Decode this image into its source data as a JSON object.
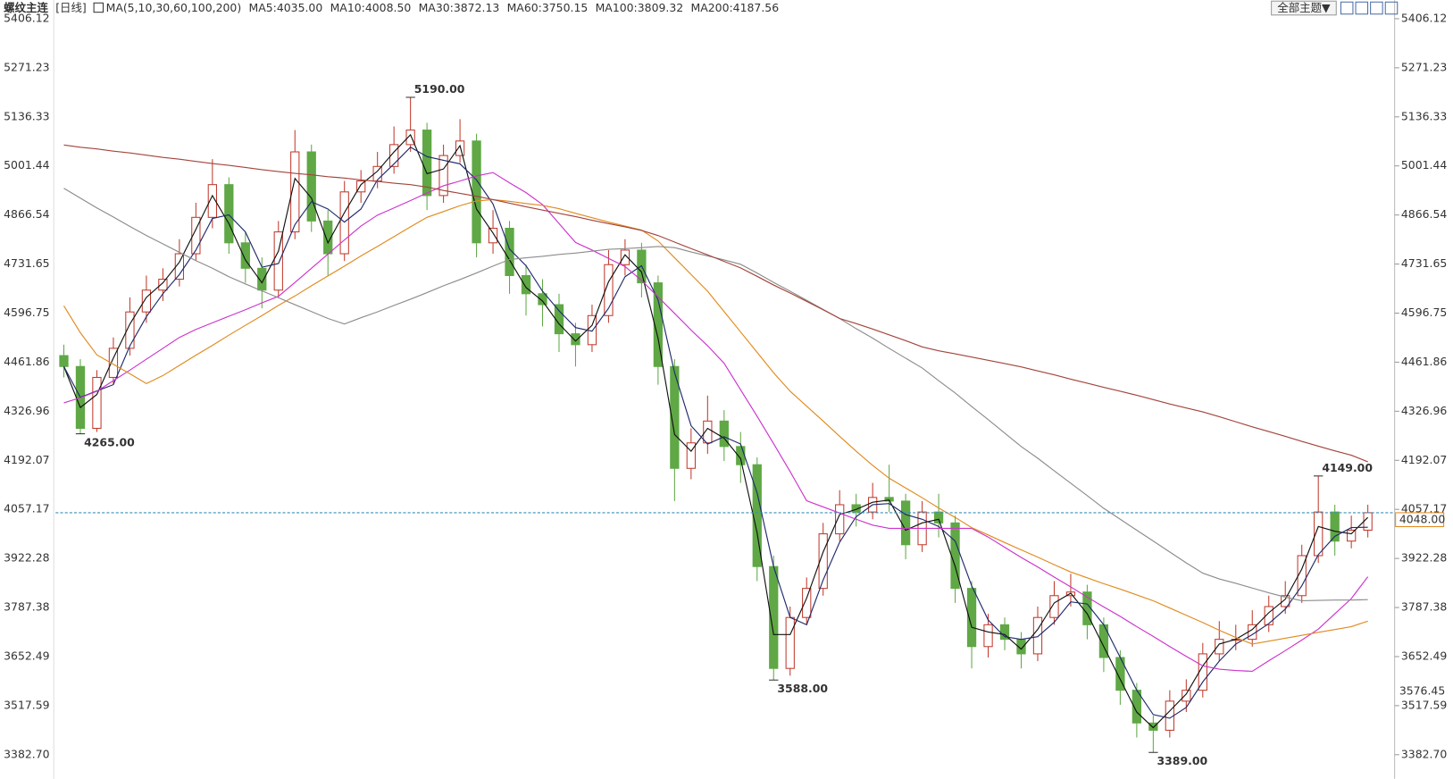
{
  "chart_data": {
    "type": "candlestick",
    "title": "螺纹主连",
    "period": "[日线]",
    "indicator": "MA(5,10,30,60,100,200)",
    "theme_button": "全部主题▼",
    "up_color": "#c0392b",
    "down_color": "#5fa845",
    "ylim": [
      3382.7,
      5406.12
    ],
    "yticks": [
      {
        "value": 3382.7,
        "label": "3382.70"
      },
      3517.59,
      3652.49,
      3787.38,
      3922.28,
      4057.17,
      4192.07,
      4326.96,
      4461.86,
      4596.75,
      4731.65,
      4866.54,
      5001.44,
      5136.33,
      5271.23,
      5406.12
    ],
    "ohlc": {
      "open": [
        4480,
        4450,
        4280,
        4420,
        4500,
        4600,
        4660,
        4690,
        4760,
        4860,
        4950,
        4790,
        4720,
        4660,
        4820,
        5040,
        4850,
        4760,
        4930,
        4960,
        5000,
        5060,
        5100,
        4920,
        5030,
        5070,
        4790,
        4830,
        4700,
        4650,
        4620,
        4540,
        4510,
        4590,
        4730,
        4770,
        4680,
        4450,
        4170,
        4240,
        4300,
        4230,
        4180,
        3900,
        3620,
        3760,
        3840,
        3990,
        4070,
        4050,
        4090,
        4080,
        3960,
        4050,
        4020,
        3840,
        3680,
        3740,
        3700,
        3660,
        3760,
        3820,
        3830,
        3740,
        3650,
        3560,
        3470,
        3450,
        3530,
        3560,
        3660,
        3700,
        3700,
        3740,
        3790,
        3820,
        3930,
        4050,
        3970,
        4000
      ],
      "high": [
        4510,
        4470,
        4440,
        4530,
        4640,
        4700,
        4720,
        4800,
        4900,
        5020,
        4970,
        4820,
        4750,
        4850,
        5100,
        5060,
        4880,
        4960,
        4990,
        5040,
        5110,
        5190,
        5120,
        5060,
        5130,
        5090,
        4880,
        4850,
        4730,
        4690,
        4650,
        4570,
        4620,
        4770,
        4800,
        4790,
        4700,
        4470,
        4280,
        4370,
        4330,
        4270,
        4200,
        3930,
        3790,
        3870,
        4020,
        4110,
        4100,
        4130,
        4180,
        4100,
        4080,
        4100,
        4040,
        3860,
        3770,
        3760,
        3720,
        3790,
        3860,
        3880,
        3850,
        3760,
        3670,
        3580,
        3490,
        3560,
        3590,
        3690,
        3750,
        3740,
        3780,
        3820,
        3860,
        3960,
        4149,
        4070,
        4040,
        4070
      ],
      "low": [
        4420,
        4265,
        4270,
        4400,
        4480,
        4570,
        4630,
        4670,
        4740,
        4830,
        4760,
        4680,
        4610,
        4640,
        4800,
        4820,
        4700,
        4740,
        4900,
        4940,
        4980,
        5040,
        4880,
        4900,
        5010,
        4750,
        4760,
        4650,
        4590,
        4560,
        4490,
        4450,
        4490,
        4570,
        4700,
        4640,
        4400,
        4080,
        4140,
        4210,
        4190,
        4130,
        3860,
        3588,
        3600,
        3740,
        3820,
        3970,
        4010,
        4030,
        4050,
        3920,
        3940,
        3980,
        3800,
        3620,
        3650,
        3670,
        3620,
        3640,
        3740,
        3790,
        3700,
        3610,
        3520,
        3430,
        3389,
        3430,
        3500,
        3540,
        3640,
        3670,
        3680,
        3720,
        3770,
        3800,
        3910,
        3930,
        3950,
        3980
      ],
      "close": [
        4450,
        4280,
        4420,
        4500,
        4600,
        4660,
        4690,
        4760,
        4860,
        4950,
        4790,
        4720,
        4660,
        4820,
        5040,
        4850,
        4760,
        4930,
        4960,
        5000,
        5060,
        5100,
        4920,
        5030,
        5070,
        4790,
        4830,
        4700,
        4650,
        4620,
        4540,
        4510,
        4590,
        4730,
        4770,
        4680,
        4450,
        4170,
        4240,
        4300,
        4230,
        4180,
        3900,
        3620,
        3760,
        3840,
        3990,
        4070,
        4050,
        4090,
        4080,
        3960,
        4050,
        4020,
        3840,
        3680,
        3740,
        3700,
        3660,
        3760,
        3820,
        3830,
        3740,
        3650,
        3560,
        3470,
        3450,
        3530,
        3560,
        3660,
        3700,
        3700,
        3740,
        3790,
        3820,
        3930,
        4050,
        3970,
        4000,
        4048
      ]
    },
    "lines": [
      {
        "name": "MA5:4035.00",
        "color": "#111111",
        "values": [
          4450,
          4337,
          4373,
          4473,
          4567,
          4640,
          4680,
          4737,
          4827,
          4920,
          4843,
          4743,
          4680,
          4767,
          4967,
          4913,
          4790,
          4873,
          4950,
          4987,
          5040,
          5087,
          4980,
          4993,
          5057,
          4883,
          4817,
          4743,
          4667,
          4630,
          4567,
          4520,
          4563,
          4683,
          4757,
          4710,
          4527,
          4263,
          4217,
          4280,
          4253,
          4197,
          3993,
          3713,
          3713,
          3813,
          3940,
          4043,
          4057,
          4077,
          4083,
          4000,
          4020,
          4030,
          3900,
          3733,
          3720,
          3713,
          3673,
          3727,
          3800,
          3827,
          3770,
          3680,
          3590,
          3500,
          3457,
          3503,
          3550,
          3627,
          3687,
          3700,
          3727,
          3773,
          3810,
          3893,
          4010,
          3997,
          3990,
          4035
        ]
      },
      {
        "name": "MA10:4008.50",
        "color": "#1f2a6b",
        "values": [
          4450,
          4365,
          4383,
          4400,
          4507,
          4587,
          4650,
          4703,
          4770,
          4857,
          4867,
          4820,
          4723,
          4733,
          4840,
          4903,
          4883,
          4847,
          4883,
          4963,
          5007,
          5053,
          5027,
          5017,
          5007,
          4963,
          4897,
          4773,
          4727,
          4657,
          4603,
          4557,
          4547,
          4610,
          4697,
          4727,
          4633,
          4433,
          4287,
          4237,
          4257,
          4237,
          4103,
          3900,
          3760,
          3740,
          3863,
          3967,
          4037,
          4070,
          4073,
          4043,
          4030,
          4010,
          3970,
          3847,
          3753,
          3707,
          3700,
          3707,
          3747,
          3803,
          3797,
          3740,
          3650,
          3560,
          3493,
          3483,
          3513,
          3583,
          3640,
          3687,
          3713,
          3743,
          3783,
          3847,
          3933,
          3983,
          4007,
          4008
        ]
      },
      {
        "name": "MA30:3872.13",
        "color": "#cc33cc",
        "values": [
          4350,
          4364,
          4382,
          4411,
          4440,
          4470,
          4500,
          4530,
          4552,
          4570,
          4588,
          4606,
          4625,
          4643,
          4681,
          4720,
          4759,
          4798,
          4836,
          4866,
          4886,
          4906,
          4927,
          4947,
          4960,
          4974,
          4983,
          4955,
          4928,
          4895,
          4843,
          4791,
          4770,
          4747,
          4725,
          4687,
          4641,
          4596,
          4550,
          4507,
          4459,
          4386,
          4313,
          4238,
          4161,
          4081,
          4064,
          4047,
          4030,
          4014,
          4005,
          4005,
          4005,
          4005,
          4005,
          4005,
          3981,
          3953,
          3925,
          3899,
          3871,
          3844,
          3816,
          3789,
          3763,
          3735,
          3708,
          3680,
          3653,
          3627,
          3618,
          3614,
          3612,
          3641,
          3669,
          3698,
          3728,
          3770,
          3812,
          3872
        ]
      },
      {
        "name": "MA60:3750.15",
        "color": "#e08a1e",
        "values": [
          4617,
          4543,
          4482,
          4456,
          4430,
          4403,
          4425,
          4453,
          4481,
          4508,
          4536,
          4563,
          4590,
          4618,
          4644,
          4672,
          4699,
          4726,
          4754,
          4780,
          4807,
          4834,
          4860,
          4876,
          4892,
          4905,
          4909,
          4904,
          4898,
          4893,
          4884,
          4871,
          4859,
          4847,
          4836,
          4825,
          4795,
          4749,
          4703,
          4657,
          4601,
          4545,
          4489,
          4433,
          4382,
          4341,
          4300,
          4258,
          4217,
          4178,
          4143,
          4116,
          4089,
          4061,
          4035,
          4007,
          3987,
          3966,
          3946,
          3926,
          3905,
          3885,
          3869,
          3853,
          3838,
          3822,
          3806,
          3786,
          3766,
          3746,
          3725,
          3705,
          3687,
          3695,
          3703,
          3711,
          3719,
          3727,
          3735,
          3750
        ]
      },
      {
        "name": "MA100:3809.32",
        "color": "#8c8c8c",
        "values": [
          4940,
          4913,
          4886,
          4861,
          4835,
          4810,
          4787,
          4764,
          4741,
          4720,
          4697,
          4677,
          4658,
          4639,
          4620,
          4601,
          4582,
          4567,
          4584,
          4600,
          4618,
          4635,
          4653,
          4672,
          4689,
          4707,
          4726,
          4744,
          4749,
          4753,
          4758,
          4762,
          4767,
          4772,
          4774,
          4777,
          4780,
          4777,
          4765,
          4754,
          4743,
          4731,
          4707,
          4681,
          4657,
          4632,
          4607,
          4582,
          4554,
          4528,
          4500,
          4473,
          4446,
          4411,
          4377,
          4340,
          4304,
          4267,
          4230,
          4198,
          4163,
          4129,
          4095,
          4060,
          4030,
          4000,
          3970,
          3940,
          3910,
          3882,
          3866,
          3854,
          3841,
          3828,
          3816,
          3806,
          3807,
          3808,
          3808,
          3809
        ]
      },
      {
        "name": "MA200:4187.56",
        "color": "#a3443c",
        "values": [
          5059,
          5053,
          5048,
          5042,
          5037,
          5031,
          5025,
          5020,
          5014,
          5008,
          5003,
          4997,
          4991,
          4986,
          4981,
          4977,
          4972,
          4968,
          4963,
          4959,
          4954,
          4950,
          4943,
          4934,
          4926,
          4918,
          4909,
          4899,
          4889,
          4880,
          4871,
          4862,
          4852,
          4843,
          4834,
          4824,
          4810,
          4792,
          4774,
          4757,
          4739,
          4721,
          4698,
          4674,
          4652,
          4629,
          4606,
          4582,
          4568,
          4553,
          4537,
          4521,
          4504,
          4493,
          4485,
          4476,
          4467,
          4458,
          4449,
          4438,
          4427,
          4415,
          4404,
          4393,
          4382,
          4371,
          4359,
          4347,
          4336,
          4325,
          4312,
          4298,
          4284,
          4271,
          4258,
          4244,
          4231,
          4218,
          4206,
          4188
        ]
      }
    ],
    "annotations": [
      {
        "value": 5190,
        "label": "5190.00"
      },
      {
        "value": 4265,
        "label": "4265.00"
      },
      {
        "value": 3588,
        "label": "3588.00"
      },
      {
        "value": 3389,
        "label": "3389.00"
      },
      {
        "value": 4149,
        "label": "4149.00"
      }
    ],
    "last_price": {
      "value": 4048,
      "label": "4048.00"
    },
    "right_marker": {
      "value": 3576.45,
      "label": "3576.45"
    }
  }
}
